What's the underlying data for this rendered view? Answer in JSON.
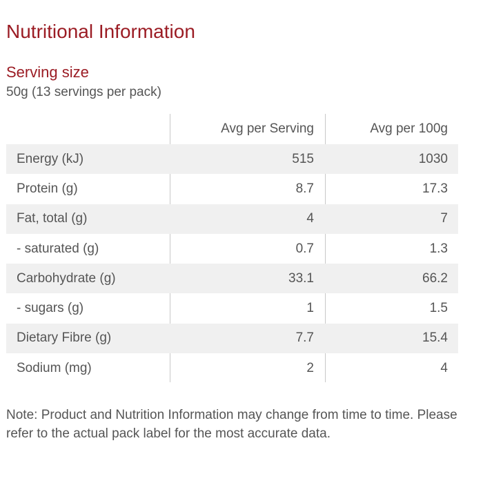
{
  "title": "Nutritional Information",
  "serving": {
    "heading": "Serving size",
    "value": "50g (13 servings per pack)"
  },
  "table": {
    "headers": [
      "",
      "Avg per Serving",
      "Avg per 100g"
    ],
    "rows": [
      {
        "label": "Energy (kJ)",
        "per_serving": "515",
        "per_100g": "1030"
      },
      {
        "label": "Protein (g)",
        "per_serving": "8.7",
        "per_100g": "17.3"
      },
      {
        "label": "Fat, total (g)",
        "per_serving": "4",
        "per_100g": "7"
      },
      {
        "label": "- saturated (g)",
        "per_serving": "0.7",
        "per_100g": "1.3"
      },
      {
        "label": "Carbohydrate (g)",
        "per_serving": "33.1",
        "per_100g": "66.2"
      },
      {
        "label": "- sugars (g)",
        "per_serving": "1",
        "per_100g": "1.5"
      },
      {
        "label": "Dietary Fibre (g)",
        "per_serving": "7.7",
        "per_100g": "15.4"
      },
      {
        "label": "Sodium (mg)",
        "per_serving": "2",
        "per_100g": "4"
      }
    ]
  },
  "note": "Note: Product and Nutrition Information may change from time to time. Please refer to the actual pack label for the most accurate data.",
  "colors": {
    "heading": "#9b1c24",
    "text": "#555555",
    "row_shade": "#f0f0f0",
    "divider": "#c8c8c8"
  }
}
